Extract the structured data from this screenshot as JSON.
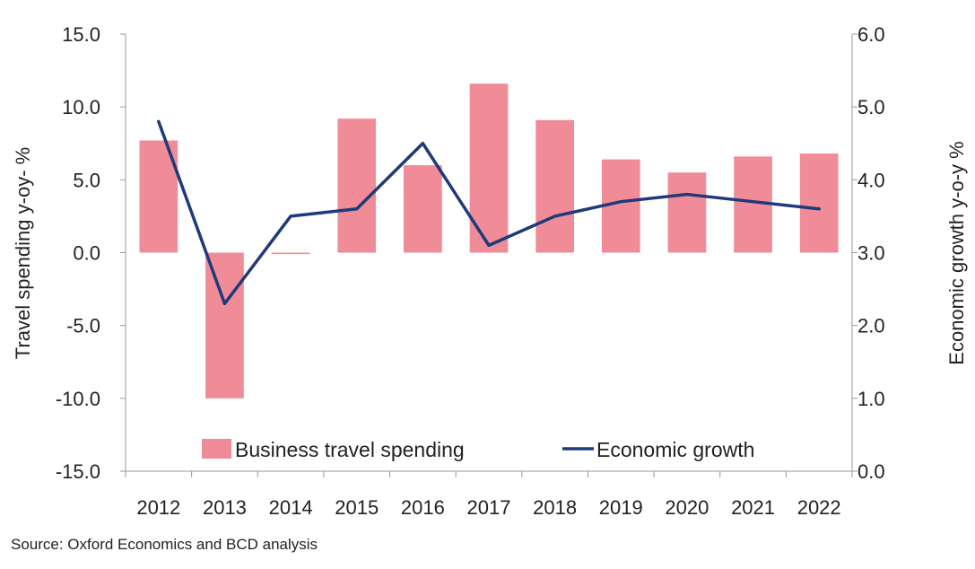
{
  "chart_data": {
    "type": "bar",
    "categories": [
      "2012",
      "2013",
      "2014",
      "2015",
      "2016",
      "2017",
      "2018",
      "2019",
      "2020",
      "2021",
      "2022"
    ],
    "series": [
      {
        "name": "Business travel spending",
        "type": "bar",
        "axis": "left",
        "values": [
          7.7,
          -10.0,
          -0.1,
          9.2,
          6.0,
          11.6,
          9.1,
          6.4,
          5.5,
          6.6,
          6.8
        ]
      },
      {
        "name": "Economic growth",
        "type": "line",
        "axis": "right",
        "values": [
          4.8,
          2.3,
          3.5,
          3.6,
          4.5,
          3.1,
          3.5,
          3.7,
          3.8,
          3.7,
          3.6
        ]
      }
    ],
    "ylabel": "Travel spending y-oy- %",
    "y2label": "Economic growth y-o-y %",
    "ylim": [
      -15,
      15
    ],
    "y2lim": [
      0,
      6
    ],
    "yticks": [
      "15.0",
      "10.0",
      "5.0",
      "0.0",
      "-5.0",
      "-10.0",
      "-15.0"
    ],
    "y2ticks": [
      "6.0",
      "5.0",
      "4.0",
      "3.0",
      "2.0",
      "1.0",
      "0.0"
    ],
    "legend_position": "bottom-center",
    "grid": false,
    "colors": {
      "bars": "#f08c98",
      "line": "#1f3a7a",
      "axis": "#999999"
    }
  },
  "source": "Source: Oxford Economics and BCD analysis"
}
